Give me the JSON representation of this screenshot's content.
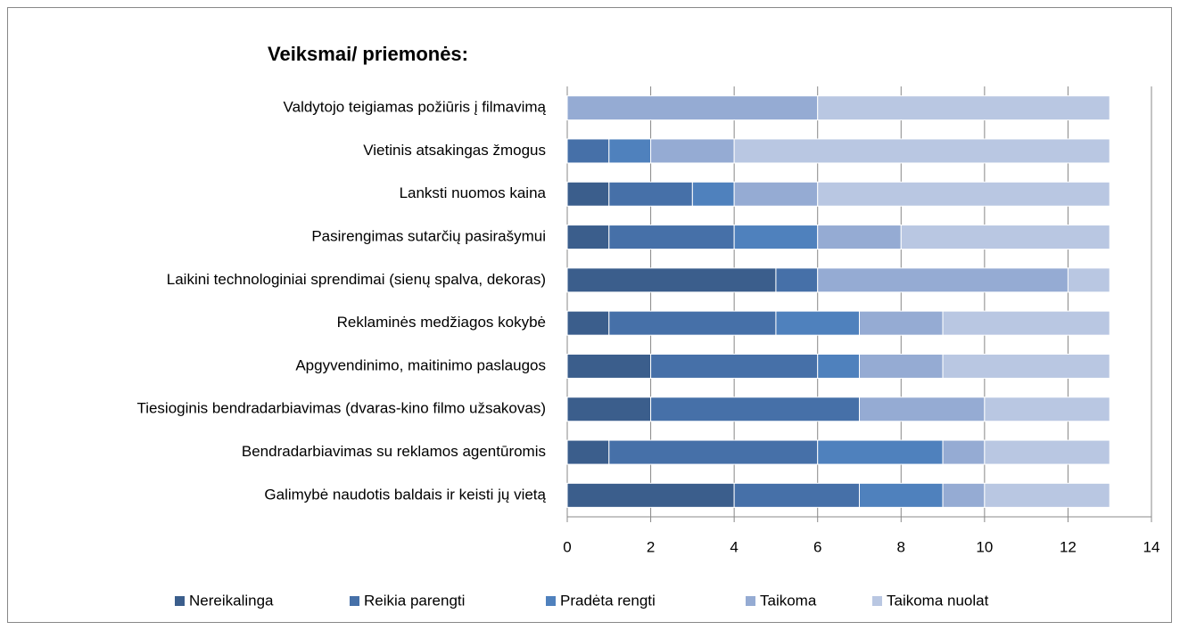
{
  "chart_data": {
    "type": "stacked-bar-horizontal",
    "title": "Veiksmai/ priemonės:",
    "categories": [
      "Valdytojo teigiamas požiūris į filmavimą",
      "Vietinis atsakingas žmogus",
      "Lanksti nuomos kaina",
      "Pasirengimas sutarčių pasirašymui",
      "Laikini technologiniai sprendimai (sienų spalva, dekoras)",
      "Reklaminės medžiagos kokybė",
      "Apgyvendinimo, maitinimo paslaugos",
      "Tiesioginis bendradarbiavimas (dvaras-kino filmo užsakovas)",
      "Bendradarbiavimas su reklamos agentūromis",
      "Galimybė naudotis baldais ir keisti jų vietą"
    ],
    "series": [
      {
        "name": "Nereikalinga",
        "color": "#3b5e8c",
        "values": [
          0,
          0,
          1,
          1,
          5,
          1,
          2,
          2,
          1,
          4
        ]
      },
      {
        "name": "Reikia parengti",
        "color": "#4670a8",
        "values": [
          0,
          1,
          2,
          3,
          1,
          4,
          4,
          5,
          5,
          3
        ]
      },
      {
        "name": "Pradėta rengti",
        "color": "#4f81bd",
        "values": [
          0,
          1,
          1,
          2,
          0,
          2,
          1,
          0,
          3,
          2
        ]
      },
      {
        "name": "Taikoma",
        "color": "#95abd3",
        "values": [
          6,
          2,
          2,
          2,
          6,
          2,
          2,
          3,
          1,
          1
        ]
      },
      {
        "name": "Taikoma nuolat",
        "color": "#b9c7e2",
        "values": [
          7,
          9,
          7,
          5,
          1,
          4,
          4,
          3,
          3,
          3
        ]
      }
    ],
    "xlim": [
      0,
      14
    ],
    "xticks": [
      0,
      2,
      4,
      6,
      8,
      10,
      12,
      14
    ],
    "grid": true,
    "legend": "bottom"
  }
}
